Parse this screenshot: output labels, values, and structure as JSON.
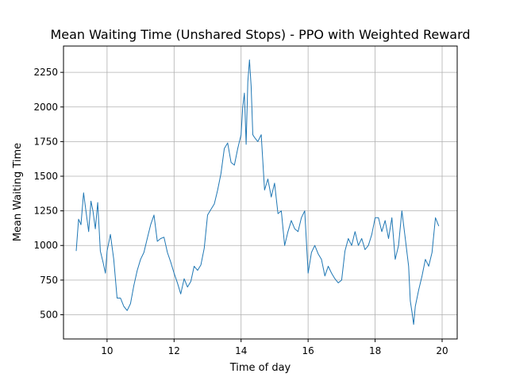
{
  "chart_data": {
    "type": "line",
    "title": "Mean Waiting Time (Unshared Stops) - PPO with Weighted Reward",
    "xlabel": "Time of day",
    "ylabel": "Mean Waiting Time",
    "xlim": [
      8.7,
      20.45
    ],
    "ylim": [
      325,
      2440
    ],
    "x_ticks": [
      10,
      12,
      14,
      16,
      18,
      20
    ],
    "y_ticks": [
      500,
      750,
      1000,
      1250,
      1500,
      1750,
      2000,
      2250
    ],
    "grid": true,
    "legend": "none",
    "series": [
      {
        "color": "#1f77b4",
        "x": [
          9.08,
          9.15,
          9.22,
          9.3,
          9.38,
          9.45,
          9.52,
          9.58,
          9.65,
          9.72,
          9.8,
          9.88,
          9.95,
          10.0,
          10.1,
          10.2,
          10.3,
          10.4,
          10.5,
          10.6,
          10.7,
          10.8,
          10.9,
          11.0,
          11.1,
          11.2,
          11.3,
          11.4,
          11.5,
          11.6,
          11.7,
          11.8,
          11.9,
          12.0,
          12.1,
          12.2,
          12.3,
          12.4,
          12.5,
          12.6,
          12.7,
          12.8,
          12.9,
          13.0,
          13.1,
          13.2,
          13.3,
          13.4,
          13.5,
          13.6,
          13.7,
          13.8,
          13.9,
          14.0,
          14.05,
          14.1,
          14.15,
          14.2,
          14.25,
          14.3,
          14.35,
          14.4,
          14.5,
          14.6,
          14.7,
          14.8,
          14.9,
          15.0,
          15.1,
          15.2,
          15.3,
          15.4,
          15.5,
          15.6,
          15.7,
          15.8,
          15.9,
          16.0,
          16.1,
          16.2,
          16.3,
          16.4,
          16.5,
          16.6,
          16.7,
          16.8,
          16.9,
          17.0,
          17.1,
          17.2,
          17.3,
          17.4,
          17.5,
          17.6,
          17.7,
          17.8,
          17.9,
          18.0,
          18.1,
          18.2,
          18.3,
          18.4,
          18.5,
          18.6,
          18.7,
          18.8,
          18.9,
          19.0,
          19.05,
          19.1,
          19.15,
          19.2,
          19.3,
          19.4,
          19.5,
          19.6,
          19.7,
          19.8,
          19.9
        ],
        "y": [
          960,
          1190,
          1150,
          1380,
          1230,
          1100,
          1320,
          1250,
          1120,
          1310,
          960,
          880,
          800,
          960,
          1080,
          900,
          620,
          620,
          560,
          530,
          580,
          710,
          820,
          900,
          950,
          1050,
          1150,
          1220,
          1030,
          1050,
          1060,
          950,
          880,
          800,
          730,
          650,
          760,
          700,
          740,
          850,
          820,
          860,
          980,
          1220,
          1260,
          1300,
          1400,
          1520,
          1700,
          1740,
          1600,
          1580,
          1700,
          1800,
          2000,
          2100,
          1730,
          2180,
          2340,
          2150,
          1800,
          1780,
          1750,
          1800,
          1400,
          1480,
          1350,
          1450,
          1230,
          1250,
          1000,
          1100,
          1180,
          1120,
          1100,
          1200,
          1250,
          800,
          950,
          1000,
          940,
          900,
          780,
          850,
          800,
          760,
          730,
          750,
          960,
          1050,
          1000,
          1100,
          1000,
          1050,
          970,
          1000,
          1080,
          1200,
          1200,
          1100,
          1180,
          1050,
          1200,
          900,
          1000,
          1250,
          1050,
          850,
          600,
          520,
          430,
          560,
          680,
          780,
          900,
          850,
          950,
          1200,
          1140
        ]
      }
    ]
  }
}
